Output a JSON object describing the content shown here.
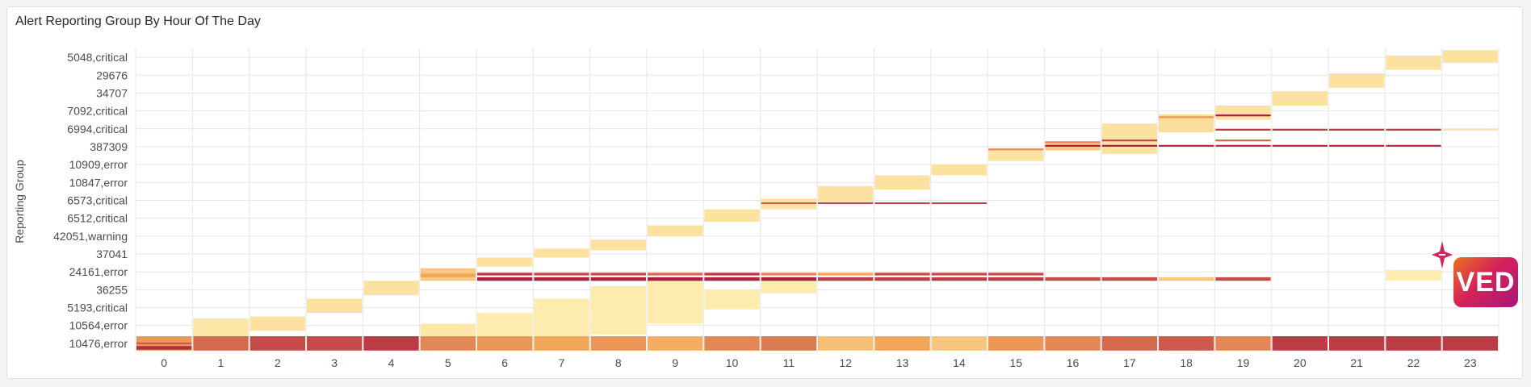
{
  "panel": {
    "title": "Alert Reporting Group By Hour Of The Day",
    "logo_text": "VED"
  },
  "colors": {
    "low": "#fff5b8",
    "mid": "#f2a65a",
    "high": "#a50f3c",
    "grid": "#e6e6e6"
  },
  "chart_data": {
    "type": "heatmap",
    "title": "Alert Reporting Group By Hour Of The Day",
    "xlabel": "",
    "ylabel": "Reporting Group",
    "x": [
      "0",
      "1",
      "2",
      "3",
      "4",
      "5",
      "6",
      "7",
      "8",
      "9",
      "10",
      "11",
      "12",
      "13",
      "14",
      "15",
      "16",
      "17",
      "18",
      "19",
      "20",
      "21",
      "22",
      "23"
    ],
    "y_labels": [
      "10476,error",
      "10564,error",
      "5193,critical",
      "36255",
      "24161,error",
      "37041",
      "42051,warning",
      "6512,critical",
      "6573,critical",
      "10847,error",
      "10909,error",
      "387309",
      "6994,critical",
      "7092,critical",
      "34707",
      "29676",
      "5048,critical"
    ],
    "y_range": [
      0,
      17
    ],
    "color_scale": "yellow-orange-red",
    "cells": [
      {
        "x": 0,
        "y0": 0.1,
        "y1": 0.9,
        "v": 0.55
      },
      {
        "x": 0,
        "y0": 0.15,
        "y1": 0.35,
        "v": 0.9
      },
      {
        "x": 0,
        "y0": 0.45,
        "y1": 0.55,
        "v": 0.75
      },
      {
        "x": 1,
        "y0": 0.1,
        "y1": 0.9,
        "v": 0.7
      },
      {
        "x": 1,
        "y0": 0.9,
        "y1": 1.9,
        "v": 0.1
      },
      {
        "x": 2,
        "y0": 0.1,
        "y1": 0.9,
        "v": 0.8
      },
      {
        "x": 2,
        "y0": 1.2,
        "y1": 2.0,
        "v": 0.12
      },
      {
        "x": 3,
        "y0": 0.1,
        "y1": 0.9,
        "v": 0.8
      },
      {
        "x": 3,
        "y0": 2.2,
        "y1": 3.0,
        "v": 0.12
      },
      {
        "x": 4,
        "y0": 0.1,
        "y1": 0.9,
        "v": 0.85
      },
      {
        "x": 4,
        "y0": 3.2,
        "y1": 4.0,
        "v": 0.12
      },
      {
        "x": 5,
        "y0": 0.1,
        "y1": 0.9,
        "v": 0.6
      },
      {
        "x": 5,
        "y0": 0.9,
        "y1": 1.6,
        "v": 0.08
      },
      {
        "x": 5,
        "y0": 4.0,
        "y1": 4.7,
        "v": 0.3
      },
      {
        "x": 5,
        "y0": 4.2,
        "y1": 4.4,
        "v": 0.5
      },
      {
        "x": 6,
        "y0": 0.1,
        "y1": 0.9,
        "v": 0.55
      },
      {
        "x": 6,
        "y0": 0.9,
        "y1": 2.2,
        "v": 0.06
      },
      {
        "x": 6,
        "y0": 4.0,
        "y1": 4.2,
        "v": 0.95
      },
      {
        "x": 6,
        "y0": 4.3,
        "y1": 4.45,
        "v": 0.85
      },
      {
        "x": 6,
        "y0": 4.8,
        "y1": 5.3,
        "v": 0.12
      },
      {
        "x": 7,
        "y0": 0.1,
        "y1": 0.9,
        "v": 0.5
      },
      {
        "x": 7,
        "y0": 0.9,
        "y1": 3.0,
        "v": 0.06
      },
      {
        "x": 7,
        "y0": 4.0,
        "y1": 4.2,
        "v": 0.95
      },
      {
        "x": 7,
        "y0": 4.3,
        "y1": 4.45,
        "v": 0.8
      },
      {
        "x": 7,
        "y0": 5.3,
        "y1": 5.8,
        "v": 0.12
      },
      {
        "x": 8,
        "y0": 0.1,
        "y1": 0.9,
        "v": 0.55
      },
      {
        "x": 8,
        "y0": 1.0,
        "y1": 3.7,
        "v": 0.06
      },
      {
        "x": 8,
        "y0": 4.0,
        "y1": 4.2,
        "v": 0.95
      },
      {
        "x": 8,
        "y0": 4.3,
        "y1": 4.45,
        "v": 0.8
      },
      {
        "x": 8,
        "y0": 5.7,
        "y1": 6.3,
        "v": 0.12
      },
      {
        "x": 9,
        "y0": 0.1,
        "y1": 0.9,
        "v": 0.45
      },
      {
        "x": 9,
        "y0": 1.6,
        "y1": 4.0,
        "v": 0.06
      },
      {
        "x": 9,
        "y0": 4.0,
        "y1": 4.2,
        "v": 0.95
      },
      {
        "x": 9,
        "y0": 4.3,
        "y1": 4.45,
        "v": 0.7
      },
      {
        "x": 9,
        "y0": 6.5,
        "y1": 7.1,
        "v": 0.12
      },
      {
        "x": 10,
        "y0": 0.1,
        "y1": 0.9,
        "v": 0.6
      },
      {
        "x": 10,
        "y0": 2.4,
        "y1": 3.5,
        "v": 0.06
      },
      {
        "x": 10,
        "y0": 4.0,
        "y1": 4.2,
        "v": 0.95
      },
      {
        "x": 10,
        "y0": 4.3,
        "y1": 4.45,
        "v": 0.85
      },
      {
        "x": 10,
        "y0": 7.3,
        "y1": 8.0,
        "v": 0.12
      },
      {
        "x": 11,
        "y0": 0.1,
        "y1": 0.9,
        "v": 0.65
      },
      {
        "x": 11,
        "y0": 3.3,
        "y1": 4.0,
        "v": 0.06
      },
      {
        "x": 11,
        "y0": 4.0,
        "y1": 4.2,
        "v": 0.95
      },
      {
        "x": 11,
        "y0": 4.3,
        "y1": 4.45,
        "v": 0.6
      },
      {
        "x": 11,
        "y0": 8.0,
        "y1": 8.6,
        "v": 0.12
      },
      {
        "x": 11,
        "y0": 8.3,
        "y1": 8.38,
        "v": 0.8
      },
      {
        "x": 12,
        "y0": 0.1,
        "y1": 0.9,
        "v": 0.35
      },
      {
        "x": 12,
        "y0": 4.0,
        "y1": 4.2,
        "v": 0.85
      },
      {
        "x": 12,
        "y0": 4.3,
        "y1": 4.45,
        "v": 0.5
      },
      {
        "x": 12,
        "y0": 8.3,
        "y1": 8.38,
        "v": 0.9
      },
      {
        "x": 12,
        "y0": 8.4,
        "y1": 9.3,
        "v": 0.12
      },
      {
        "x": 13,
        "y0": 0.1,
        "y1": 0.9,
        "v": 0.5
      },
      {
        "x": 13,
        "y0": 4.0,
        "y1": 4.2,
        "v": 0.85
      },
      {
        "x": 13,
        "y0": 4.3,
        "y1": 4.45,
        "v": 0.8
      },
      {
        "x": 13,
        "y0": 8.3,
        "y1": 8.38,
        "v": 0.9
      },
      {
        "x": 13,
        "y0": 9.1,
        "y1": 9.9,
        "v": 0.12
      },
      {
        "x": 14,
        "y0": 0.1,
        "y1": 0.9,
        "v": 0.3
      },
      {
        "x": 14,
        "y0": 4.0,
        "y1": 4.2,
        "v": 0.85
      },
      {
        "x": 14,
        "y0": 4.3,
        "y1": 4.45,
        "v": 0.8
      },
      {
        "x": 14,
        "y0": 8.3,
        "y1": 8.38,
        "v": 0.9
      },
      {
        "x": 14,
        "y0": 9.9,
        "y1": 10.5,
        "v": 0.12
      },
      {
        "x": 15,
        "y0": 0.1,
        "y1": 0.9,
        "v": 0.55
      },
      {
        "x": 15,
        "y0": 4.0,
        "y1": 4.2,
        "v": 0.85
      },
      {
        "x": 15,
        "y0": 4.3,
        "y1": 4.45,
        "v": 0.8
      },
      {
        "x": 15,
        "y0": 10.7,
        "y1": 11.3,
        "v": 0.12
      },
      {
        "x": 15,
        "y0": 11.3,
        "y1": 11.4,
        "v": 0.6
      },
      {
        "x": 16,
        "y0": 0.1,
        "y1": 0.9,
        "v": 0.6
      },
      {
        "x": 16,
        "y0": 4.0,
        "y1": 4.2,
        "v": 0.8
      },
      {
        "x": 16,
        "y0": 11.3,
        "y1": 11.8,
        "v": 0.3
      },
      {
        "x": 16,
        "y0": 11.5,
        "y1": 11.6,
        "v": 0.95
      },
      {
        "x": 16,
        "y0": 11.7,
        "y1": 11.8,
        "v": 0.6
      },
      {
        "x": 17,
        "y0": 0.1,
        "y1": 0.9,
        "v": 0.7
      },
      {
        "x": 17,
        "y0": 4.0,
        "y1": 4.2,
        "v": 0.8
      },
      {
        "x": 17,
        "y0": 11.1,
        "y1": 12.8,
        "v": 0.12
      },
      {
        "x": 17,
        "y0": 11.5,
        "y1": 11.6,
        "v": 0.95
      },
      {
        "x": 17,
        "y0": 11.8,
        "y1": 11.9,
        "v": 0.8
      },
      {
        "x": 18,
        "y0": 0.1,
        "y1": 0.9,
        "v": 0.75
      },
      {
        "x": 18,
        "y0": 4.0,
        "y1": 4.2,
        "v": 0.3
      },
      {
        "x": 18,
        "y0": 11.5,
        "y1": 11.6,
        "v": 0.9
      },
      {
        "x": 18,
        "y0": 12.3,
        "y1": 13.3,
        "v": 0.15
      },
      {
        "x": 18,
        "y0": 13.1,
        "y1": 13.2,
        "v": 0.55
      },
      {
        "x": 19,
        "y0": 0.1,
        "y1": 0.9,
        "v": 0.6
      },
      {
        "x": 19,
        "y0": 4.0,
        "y1": 4.2,
        "v": 0.8
      },
      {
        "x": 19,
        "y0": 11.5,
        "y1": 11.6,
        "v": 0.9
      },
      {
        "x": 19,
        "y0": 11.8,
        "y1": 11.9,
        "v": 0.7
      },
      {
        "x": 19,
        "y0": 12.4,
        "y1": 12.5,
        "v": 0.85
      },
      {
        "x": 19,
        "y0": 13.0,
        "y1": 13.8,
        "v": 0.12
      },
      {
        "x": 19,
        "y0": 13.2,
        "y1": 13.3,
        "v": 0.95
      },
      {
        "x": 20,
        "y0": 0.1,
        "y1": 0.9,
        "v": 0.85
      },
      {
        "x": 20,
        "y0": 11.5,
        "y1": 11.6,
        "v": 0.9
      },
      {
        "x": 20,
        "y0": 12.4,
        "y1": 12.5,
        "v": 0.85
      },
      {
        "x": 20,
        "y0": 13.8,
        "y1": 14.6,
        "v": 0.12
      },
      {
        "x": 21,
        "y0": 0.1,
        "y1": 0.9,
        "v": 0.85
      },
      {
        "x": 21,
        "y0": 11.5,
        "y1": 11.6,
        "v": 0.9
      },
      {
        "x": 21,
        "y0": 12.4,
        "y1": 12.5,
        "v": 0.85
      },
      {
        "x": 21,
        "y0": 14.8,
        "y1": 15.6,
        "v": 0.12
      },
      {
        "x": 22,
        "y0": 0.1,
        "y1": 0.9,
        "v": 0.85
      },
      {
        "x": 22,
        "y0": 4.0,
        "y1": 4.6,
        "v": 0.06
      },
      {
        "x": 22,
        "y0": 11.5,
        "y1": 11.6,
        "v": 0.9
      },
      {
        "x": 22,
        "y0": 12.4,
        "y1": 12.5,
        "v": 0.85
      },
      {
        "x": 22,
        "y0": 15.8,
        "y1": 16.6,
        "v": 0.12
      },
      {
        "x": 23,
        "y0": 0.1,
        "y1": 0.9,
        "v": 0.85
      },
      {
        "x": 23,
        "y0": 12.4,
        "y1": 12.5,
        "v": 0.1
      },
      {
        "x": 23,
        "y0": 16.2,
        "y1": 16.9,
        "v": 0.12
      }
    ]
  }
}
